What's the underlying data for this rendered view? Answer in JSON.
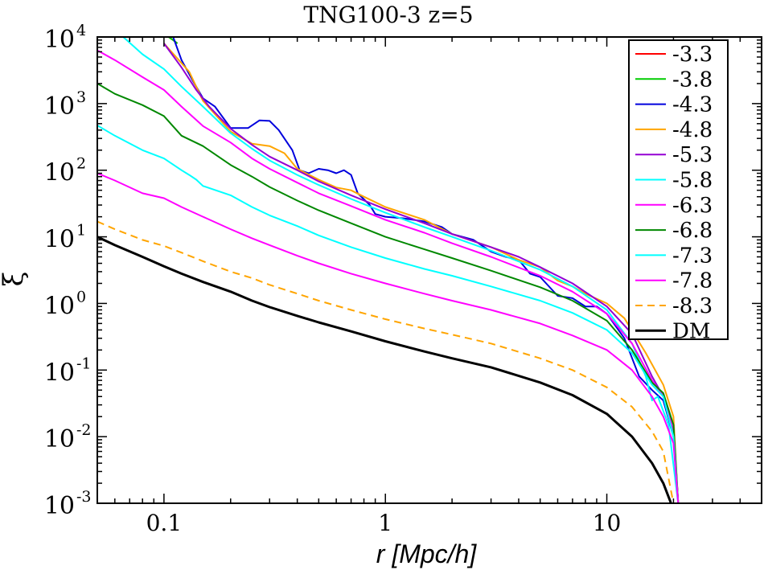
{
  "chart_data": {
    "type": "line",
    "title": "TNG100-3 z=5",
    "xlabel": "r [Mpc/h]",
    "ylabel": "ξ",
    "xscale": "log",
    "yscale": "log",
    "xlim": [
      0.05,
      50
    ],
    "ylim": [
      0.001,
      10000
    ],
    "x_ticks": [
      {
        "value": 0.1,
        "label": "0.1"
      },
      {
        "value": 1,
        "label": "1"
      },
      {
        "value": 10,
        "label": "10"
      }
    ],
    "y_ticks": [
      {
        "value": 10000,
        "base": "10",
        "exp": "4"
      },
      {
        "value": 1000,
        "base": "10",
        "exp": "3"
      },
      {
        "value": 100,
        "base": "10",
        "exp": "2"
      },
      {
        "value": 10,
        "base": "10",
        "exp": "1"
      },
      {
        "value": 1,
        "base": "10",
        "exp": "0"
      },
      {
        "value": 0.1,
        "base": "10",
        "exp": "-1"
      },
      {
        "value": 0.01,
        "base": "10",
        "exp": "-2"
      },
      {
        "value": 0.001,
        "base": "10",
        "exp": "-3"
      }
    ],
    "legend_position": "top-right",
    "series": [
      {
        "name": "-3.3",
        "color": "#ff0000",
        "dash": false,
        "width": 2,
        "x": [
          0.105,
          0.11,
          0.115
        ],
        "y": [
          10000,
          9000,
          8000
        ]
      },
      {
        "name": "-3.8",
        "color": "#00cc00",
        "dash": false,
        "width": 2,
        "x": [
          0.105,
          0.11,
          0.115
        ],
        "y": [
          10000,
          9000,
          8000
        ]
      },
      {
        "name": "-4.3",
        "color": "#0000dd",
        "dash": false,
        "width": 2,
        "x": [
          0.11,
          0.12,
          0.135,
          0.15,
          0.17,
          0.2,
          0.24,
          0.27,
          0.3,
          0.33,
          0.38,
          0.41,
          0.45,
          0.5,
          0.55,
          0.6,
          0.65,
          0.7,
          0.75,
          0.85,
          0.9,
          1.0,
          1.2,
          1.5,
          1.8,
          2.0,
          2.5,
          3.0,
          3.5,
          4.0,
          4.5,
          5.0,
          6.0,
          7.0,
          8.0,
          9.0,
          10.0,
          12.0,
          14.0,
          16.0,
          18.0,
          20.0,
          21.0
        ],
        "y": [
          10000,
          4500,
          2200,
          1200,
          900,
          430,
          430,
          560,
          550,
          400,
          200,
          100,
          90,
          105,
          100,
          90,
          100,
          85,
          45,
          30,
          22,
          20,
          19,
          17,
          14,
          11,
          9,
          6,
          5,
          4.5,
          2.8,
          2.5,
          1.3,
          1.2,
          0.9,
          0.9,
          0.7,
          0.3,
          0.08,
          0.05,
          0.035,
          0.01,
          0.001
        ]
      },
      {
        "name": "-4.8",
        "color": "#ffa500",
        "dash": false,
        "width": 2,
        "x": [
          0.1,
          0.13,
          0.15,
          0.2,
          0.25,
          0.3,
          0.35,
          0.4,
          0.5,
          0.6,
          0.7,
          0.8,
          1.0,
          1.5,
          2.0,
          3.0,
          4.0,
          5.0,
          6.0,
          7.0,
          8.0,
          10.0,
          12.0,
          15.0,
          18.0,
          20.0,
          21.0
        ],
        "y": [
          8000,
          3000,
          1100,
          380,
          250,
          230,
          180,
          105,
          72,
          55,
          50,
          40,
          28,
          18,
          11,
          7,
          4.5,
          3.5,
          2.2,
          1.8,
          1.4,
          1.0,
          0.6,
          0.18,
          0.06,
          0.02,
          0.001
        ]
      },
      {
        "name": "-5.3",
        "color": "#9400d3",
        "dash": false,
        "width": 2,
        "x": [
          0.1,
          0.12,
          0.14,
          0.16,
          0.2,
          0.25,
          0.3,
          0.4,
          0.5,
          0.7,
          1.0,
          1.5,
          2.0,
          3.0,
          4.0,
          5.0,
          7.0,
          10.0,
          13.0,
          16.0,
          18.0,
          20.0,
          21.0
        ],
        "y": [
          8000,
          3500,
          1600,
          900,
          420,
          240,
          160,
          100,
          68,
          42,
          26,
          16,
          11,
          7,
          5,
          3.5,
          2.0,
          0.9,
          0.35,
          0.08,
          0.04,
          0.015,
          0.001
        ]
      },
      {
        "name": "-5.8",
        "color": "#00ffff",
        "dash": false,
        "width": 2,
        "x": [
          0.05,
          0.06,
          0.08,
          0.1,
          0.12,
          0.15,
          0.2,
          0.25,
          0.3,
          0.4,
          0.5,
          0.7,
          1.0,
          1.5,
          2.0,
          3.0,
          5.0,
          7.0,
          10.0,
          13.0,
          15.0,
          16.0,
          17.0,
          19.0,
          21.0
        ],
        "y": [
          17000,
          13000,
          5500,
          3300,
          1800,
          900,
          360,
          210,
          140,
          85,
          60,
          37,
          23,
          14,
          10,
          6.2,
          3.2,
          1.8,
          0.8,
          0.25,
          0.08,
          0.035,
          0.04,
          0.015,
          0.001
        ]
      },
      {
        "name": "-6.3",
        "color": "#ff00ff",
        "dash": false,
        "width": 2,
        "x": [
          0.05,
          0.06,
          0.08,
          0.1,
          0.12,
          0.15,
          0.2,
          0.25,
          0.3,
          0.4,
          0.5,
          0.7,
          1.0,
          1.5,
          2.0,
          3.0,
          5.0,
          7.0,
          10.0,
          13.0,
          16.0,
          18.0,
          20.0,
          21.0
        ],
        "y": [
          6300,
          4500,
          2500,
          1600,
          900,
          460,
          260,
          150,
          105,
          65,
          45,
          29,
          18,
          11.5,
          8,
          5,
          2.6,
          1.5,
          0.7,
          0.25,
          0.07,
          0.04,
          0.012,
          0.001
        ]
      },
      {
        "name": "-6.8",
        "color": "#008800",
        "dash": false,
        "width": 2,
        "x": [
          0.05,
          0.06,
          0.08,
          0.1,
          0.12,
          0.15,
          0.2,
          0.25,
          0.3,
          0.4,
          0.5,
          0.7,
          1.0,
          1.5,
          2.0,
          3.0,
          5.0,
          7.0,
          10.0,
          13.0,
          16.0,
          18.0,
          20.0,
          21.0
        ],
        "y": [
          2000,
          1400,
          950,
          650,
          330,
          230,
          120,
          80,
          56,
          35,
          25,
          16,
          10,
          6.5,
          4.8,
          3.1,
          1.75,
          1.1,
          0.55,
          0.2,
          0.065,
          0.045,
          0.015,
          0.001
        ]
      },
      {
        "name": "-7.3",
        "color": "#00ffff",
        "dash": false,
        "width": 2,
        "x": [
          0.05,
          0.06,
          0.08,
          0.1,
          0.12,
          0.13,
          0.14,
          0.15,
          0.2,
          0.25,
          0.3,
          0.4,
          0.5,
          0.7,
          1.0,
          1.5,
          2.0,
          3.0,
          5.0,
          7.0,
          10.0,
          13.0,
          16.0,
          18.0,
          20.0,
          21.0
        ],
        "y": [
          470,
          330,
          200,
          150,
          100,
          85,
          72,
          58,
          42,
          28,
          21,
          14.5,
          10.5,
          7,
          4.8,
          3.3,
          2.6,
          1.8,
          1.1,
          0.72,
          0.4,
          0.18,
          0.06,
          0.04,
          0.01,
          0.001
        ]
      },
      {
        "name": "-7.8",
        "color": "#ff00ff",
        "dash": false,
        "width": 2,
        "x": [
          0.05,
          0.06,
          0.08,
          0.1,
          0.12,
          0.15,
          0.2,
          0.25,
          0.3,
          0.4,
          0.5,
          0.7,
          1.0,
          1.5,
          2.0,
          3.0,
          5.0,
          7.0,
          10.0,
          13.0,
          16.0,
          18.0,
          20.0,
          21.0
        ],
        "y": [
          90,
          70,
          45,
          38,
          28,
          20,
          13,
          9.5,
          7.5,
          5.2,
          4.0,
          2.8,
          2.0,
          1.4,
          1.1,
          0.8,
          0.5,
          0.33,
          0.2,
          0.1,
          0.04,
          0.02,
          0.008,
          0.001
        ]
      },
      {
        "name": "-8.3",
        "color": "#ffa500",
        "dash": true,
        "width": 2,
        "x": [
          0.05,
          0.06,
          0.08,
          0.1,
          0.12,
          0.15,
          0.2,
          0.25,
          0.3,
          0.4,
          0.5,
          0.7,
          1.0,
          1.5,
          2.0,
          3.0,
          5.0,
          7.0,
          10.0,
          13.0,
          16.0,
          18.0,
          20.0
        ],
        "y": [
          17,
          13,
          9,
          7.3,
          5.8,
          4.3,
          3.0,
          2.4,
          1.9,
          1.4,
          1.1,
          0.8,
          0.58,
          0.42,
          0.34,
          0.25,
          0.15,
          0.1,
          0.055,
          0.028,
          0.012,
          0.006,
          0.001
        ]
      },
      {
        "name": "DM",
        "color": "#000000",
        "dash": false,
        "width": 3,
        "x": [
          0.05,
          0.06,
          0.08,
          0.1,
          0.12,
          0.15,
          0.2,
          0.25,
          0.3,
          0.4,
          0.5,
          0.7,
          1.0,
          1.5,
          2.0,
          3.0,
          5.0,
          7.0,
          10.0,
          13.0,
          16.0,
          18.0,
          19.5
        ],
        "y": [
          10,
          7.5,
          5,
          3.6,
          2.8,
          2.1,
          1.5,
          1.1,
          0.88,
          0.65,
          0.52,
          0.38,
          0.27,
          0.19,
          0.15,
          0.11,
          0.065,
          0.042,
          0.022,
          0.01,
          0.004,
          0.002,
          0.001
        ]
      }
    ]
  }
}
